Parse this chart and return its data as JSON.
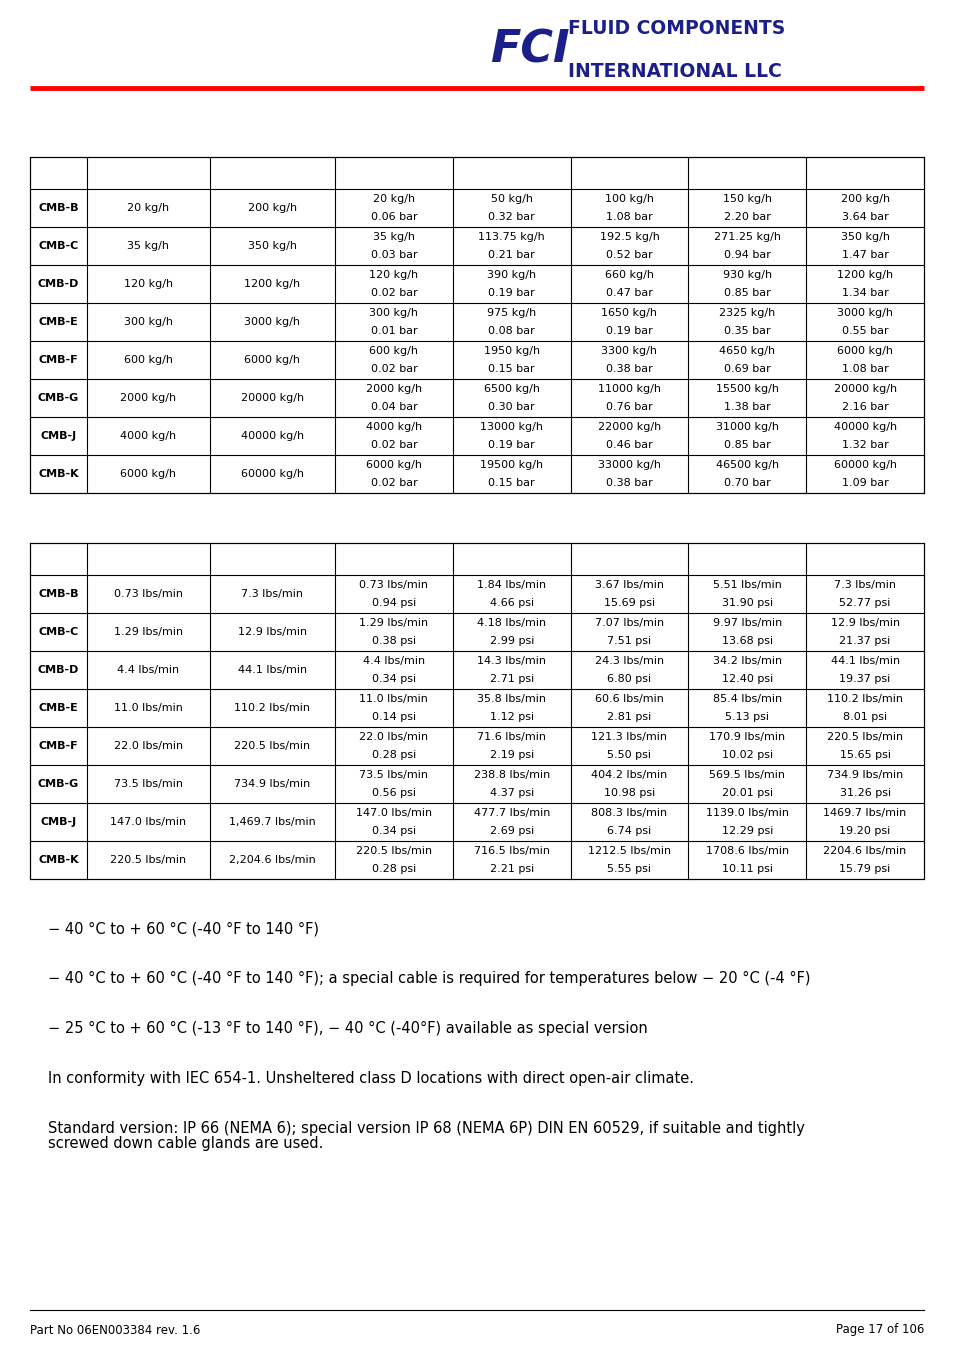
{
  "table1_rows": [
    {
      "model": "CMB-B",
      "min_flow": "20 kg/h",
      "max_flow": "200 kg/h",
      "flow1": "20 kg/h",
      "flow2": "50 kg/h",
      "flow3": "100 kg/h",
      "flow4": "150 kg/h",
      "flow5": "200 kg/h",
      "loss1": "0.06 bar",
      "loss2": "0.32 bar",
      "loss3": "1.08 bar",
      "loss4": "2.20 bar",
      "loss5": "3.64 bar"
    },
    {
      "model": "CMB-C",
      "min_flow": "35 kg/h",
      "max_flow": "350 kg/h",
      "flow1": "35 kg/h",
      "flow2": "113.75 kg/h",
      "flow3": "192.5 kg/h",
      "flow4": "271.25 kg/h",
      "flow5": "350 kg/h",
      "loss1": "0.03 bar",
      "loss2": "0.21 bar",
      "loss3": "0.52 bar",
      "loss4": "0.94 bar",
      "loss5": "1.47 bar"
    },
    {
      "model": "CMB-D",
      "min_flow": "120 kg/h",
      "max_flow": "1200 kg/h",
      "flow1": "120 kg/h",
      "flow2": "390 kg/h",
      "flow3": "660 kg/h",
      "flow4": "930 kg/h",
      "flow5": "1200 kg/h",
      "loss1": "0.02 bar",
      "loss2": "0.19 bar",
      "loss3": "0.47 bar",
      "loss4": "0.85 bar",
      "loss5": "1.34 bar"
    },
    {
      "model": "CMB-E",
      "min_flow": "300 kg/h",
      "max_flow": "3000 kg/h",
      "flow1": "300 kg/h",
      "flow2": "975 kg/h",
      "flow3": "1650 kg/h",
      "flow4": "2325 kg/h",
      "flow5": "3000 kg/h",
      "loss1": "0.01 bar",
      "loss2": "0.08 bar",
      "loss3": "0.19 bar",
      "loss4": "0.35 bar",
      "loss5": "0.55 bar"
    },
    {
      "model": "CMB-F",
      "min_flow": "600 kg/h",
      "max_flow": "6000 kg/h",
      "flow1": "600 kg/h",
      "flow2": "1950 kg/h",
      "flow3": "3300 kg/h",
      "flow4": "4650 kg/h",
      "flow5": "6000 kg/h",
      "loss1": "0.02 bar",
      "loss2": "0.15 bar",
      "loss3": "0.38 bar",
      "loss4": "0.69 bar",
      "loss5": "1.08 bar"
    },
    {
      "model": "CMB-G",
      "min_flow": "2000 kg/h",
      "max_flow": "20000 kg/h",
      "flow1": "2000 kg/h",
      "flow2": "6500 kg/h",
      "flow3": "11000 kg/h",
      "flow4": "15500 kg/h",
      "flow5": "20000 kg/h",
      "loss1": "0.04 bar",
      "loss2": "0.30 bar",
      "loss3": "0.76 bar",
      "loss4": "1.38 bar",
      "loss5": "2.16 bar"
    },
    {
      "model": "CMB-J",
      "min_flow": "4000 kg/h",
      "max_flow": "40000 kg/h",
      "flow1": "4000 kg/h",
      "flow2": "13000 kg/h",
      "flow3": "22000 kg/h",
      "flow4": "31000 kg/h",
      "flow5": "40000 kg/h",
      "loss1": "0.02 bar",
      "loss2": "0.19 bar",
      "loss3": "0.46 bar",
      "loss4": "0.85 bar",
      "loss5": "1.32 bar"
    },
    {
      "model": "CMB-K",
      "min_flow": "6000 kg/h",
      "max_flow": "60000 kg/h",
      "flow1": "6000 kg/h",
      "flow2": "19500 kg/h",
      "flow3": "33000 kg/h",
      "flow4": "46500 kg/h",
      "flow5": "60000 kg/h",
      "loss1": "0.02 bar",
      "loss2": "0.15 bar",
      "loss3": "0.38 bar",
      "loss4": "0.70 bar",
      "loss5": "1.09 bar"
    }
  ],
  "table2_rows": [
    {
      "model": "CMB-B",
      "min_flow": "0.73 lbs/min",
      "max_flow": "7.3 lbs/min",
      "flow1": "0.73 lbs/min",
      "flow2": "1.84 lbs/min",
      "flow3": "3.67 lbs/min",
      "flow4": "5.51 lbs/min",
      "flow5": "7.3 lbs/min",
      "loss1": "0.94 psi",
      "loss2": "4.66 psi",
      "loss3": "15.69 psi",
      "loss4": "31.90 psi",
      "loss5": "52.77 psi"
    },
    {
      "model": "CMB-C",
      "min_flow": "1.29 lbs/min",
      "max_flow": "12.9 lbs/min",
      "flow1": "1.29 lbs/min",
      "flow2": "4.18 lbs/min",
      "flow3": "7.07 lbs/min",
      "flow4": "9.97 lbs/min",
      "flow5": "12.9 lbs/min",
      "loss1": "0.38 psi",
      "loss2": "2.99 psi",
      "loss3": "7.51 psi",
      "loss4": "13.68 psi",
      "loss5": "21.37 psi"
    },
    {
      "model": "CMB-D",
      "min_flow": "4.4 lbs/min",
      "max_flow": "44.1 lbs/min",
      "flow1": "4.4 lbs/min",
      "flow2": "14.3 lbs/min",
      "flow3": "24.3 lbs/min",
      "flow4": "34.2 lbs/min",
      "flow5": "44.1 lbs/min",
      "loss1": "0.34 psi",
      "loss2": "2.71 psi",
      "loss3": "6.80 psi",
      "loss4": "12.40 psi",
      "loss5": "19.37 psi"
    },
    {
      "model": "CMB-E",
      "min_flow": "11.0 lbs/min",
      "max_flow": "110.2 lbs/min",
      "flow1": "11.0 lbs/min",
      "flow2": "35.8 lbs/min",
      "flow3": "60.6 lbs/min",
      "flow4": "85.4 lbs/min",
      "flow5": "110.2 lbs/min",
      "loss1": "0.14 psi",
      "loss2": "1.12 psi",
      "loss3": "2.81 psi",
      "loss4": "5.13 psi",
      "loss5": "8.01 psi"
    },
    {
      "model": "CMB-F",
      "min_flow": "22.0 lbs/min",
      "max_flow": "220.5 lbs/min",
      "flow1": "22.0 lbs/min",
      "flow2": "71.6 lbs/min",
      "flow3": "121.3 lbs/min",
      "flow4": "170.9 lbs/min",
      "flow5": "220.5 lbs/min",
      "loss1": "0.28 psi",
      "loss2": "2.19 psi",
      "loss3": "5.50 psi",
      "loss4": "10.02 psi",
      "loss5": "15.65 psi"
    },
    {
      "model": "CMB-G",
      "min_flow": "73.5 lbs/min",
      "max_flow": "734.9 lbs/min",
      "flow1": "73.5 lbs/min",
      "flow2": "238.8 lbs/min",
      "flow3": "404.2 lbs/min",
      "flow4": "569.5 lbs/min",
      "flow5": "734.9 lbs/min",
      "loss1": "0.56 psi",
      "loss2": "4.37 psi",
      "loss3": "10.98 psi",
      "loss4": "20.01 psi",
      "loss5": "31.26 psi"
    },
    {
      "model": "CMB-J",
      "min_flow": "147.0 lbs/min",
      "max_flow": "1,469.7 lbs/min",
      "flow1": "147.0 lbs/min",
      "flow2": "477.7 lbs/min",
      "flow3": "808.3 lbs/min",
      "flow4": "1139.0 lbs/min",
      "flow5": "1469.7 lbs/min",
      "loss1": "0.34 psi",
      "loss2": "2.69 psi",
      "loss3": "6.74 psi",
      "loss4": "12.29 psi",
      "loss5": "19.20 psi"
    },
    {
      "model": "CMB-K",
      "min_flow": "220.5 lbs/min",
      "max_flow": "2,204.6 lbs/min",
      "flow1": "220.5 lbs/min",
      "flow2": "716.5 lbs/min",
      "flow3": "1212.5 lbs/min",
      "flow4": "1708.6 lbs/min",
      "flow5": "2204.6 lbs/min",
      "loss1": "0.28 psi",
      "loss2": "2.21 psi",
      "loss3": "5.55 psi",
      "loss4": "10.11 psi",
      "loss5": "15.79 psi"
    }
  ],
  "ambient_temp": "− 40 °C to + 60 °C (-40 °F to 140 °F)",
  "ambient_temp_range": "− 40 °C to + 60 °C (-40 °F to 140 °F); a special cable is required for temperatures below − 20 °C (-4 °F)",
  "storage_temp": "− 25 °C to + 60 °C (-13 °F to 140 °F), − 40 °C (-40°F) available as special version",
  "climatic_category": "In conformity with IEC 654-1. Unsheltered class D locations with direct open-air climate.",
  "ingress_line1": "Standard version: IP 66 (NEMA 6); special version IP 68 (NEMA 6P) DIN EN 60529, if suitable and tightly",
  "ingress_line2": "screwed down cable glands are used.",
  "footer_left": "Part No 06EN003384 rev. 1.6",
  "footer_right": "Page 17 of 106",
  "logo_color": "#1b1f8a",
  "line_color": "#ff0000",
  "font_size_table": 8.0,
  "font_size_body": 10.5
}
